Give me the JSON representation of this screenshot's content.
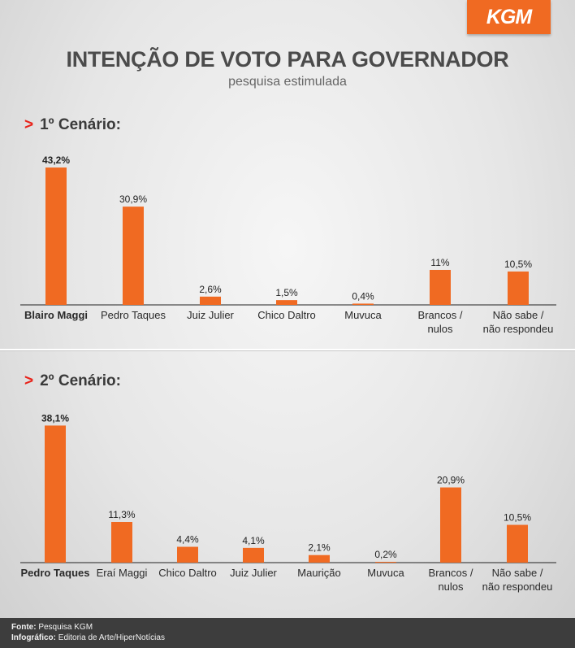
{
  "logo": "KGM",
  "title": "INTENÇÃO DE VOTO PARA GOVERNADOR",
  "subtitle": "pesquisa estimulada",
  "scenario_marker": ">",
  "scenarios": [
    {
      "label": "1º Cenário:"
    },
    {
      "label": "2º Cenário:"
    }
  ],
  "chart_data": [
    {
      "type": "bar",
      "title": "1º Cenário:",
      "categories": [
        "Blairo Maggi",
        "Pedro Taques",
        "Juiz Julier",
        "Chico Daltro",
        "Muvuca",
        "Brancos / nulos",
        "Não sabe / não respondeu"
      ],
      "category_lines": [
        [
          "Blairo Maggi"
        ],
        [
          "Pedro Taques"
        ],
        [
          "Juiz Julier"
        ],
        [
          "Chico Daltro"
        ],
        [
          "Muvuca"
        ],
        [
          "Brancos /",
          "nulos"
        ],
        [
          "Não sabe /",
          "não respondeu"
        ]
      ],
      "values": [
        43.2,
        30.9,
        2.6,
        1.5,
        0.4,
        11,
        10.5
      ],
      "value_labels": [
        "43,2%",
        "30,9%",
        "2,6%",
        "1,5%",
        "0,4%",
        "11%",
        "10,5%"
      ],
      "highlight_index": 0,
      "bar_color": "#f06a22",
      "ylim": [
        0,
        45
      ]
    },
    {
      "type": "bar",
      "title": "2º Cenário:",
      "categories": [
        "Pedro Taques",
        "Eraí Maggi",
        "Chico Daltro",
        "Juiz Julier",
        "Maurição",
        "Muvuca",
        "Brancos / nulos",
        "Não sabe / não respondeu"
      ],
      "category_lines": [
        [
          "Pedro Taques"
        ],
        [
          "Eraí Maggi"
        ],
        [
          "Chico Daltro"
        ],
        [
          "Juiz Julier"
        ],
        [
          "Maurição"
        ],
        [
          "Muvuca"
        ],
        [
          "Brancos /",
          "nulos"
        ],
        [
          "Não sabe /",
          "não respondeu"
        ]
      ],
      "values": [
        38.1,
        11.3,
        4.4,
        4.1,
        2.1,
        0.2,
        20.9,
        10.5
      ],
      "value_labels": [
        "38,1%",
        "11,3%",
        "4,4%",
        "4,1%",
        "2,1%",
        "0,2%",
        "20,9%",
        "10,5%"
      ],
      "highlight_index": 0,
      "bar_color": "#f06a22",
      "ylim": [
        0,
        40
      ]
    }
  ],
  "footer": {
    "source_label": "Fonte:",
    "source_value": "Pesquisa KGM",
    "infographic_label": "Infográfico:",
    "infographic_value": "Editoria de Arte/HiperNotícias"
  }
}
